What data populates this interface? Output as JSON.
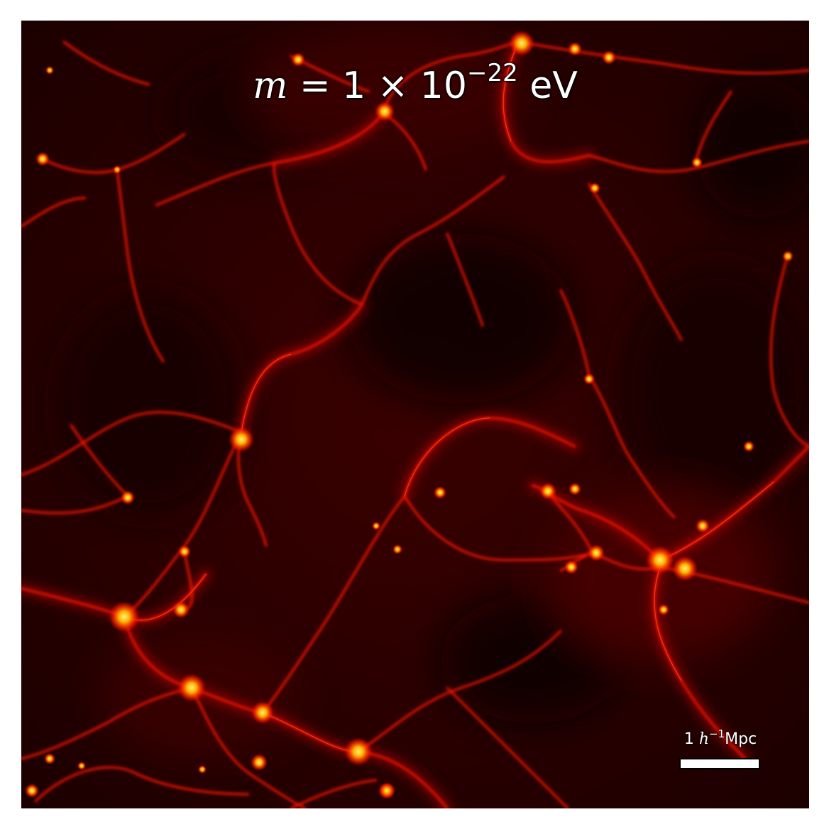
{
  "image": {
    "title": {
      "variable": "m",
      "equals": " = 1 × 10",
      "exponent": "−22",
      "unit": " eV"
    },
    "scale_bar": {
      "prefix": "1 ",
      "h": "h",
      "exponent": "−1",
      "unit": "Mpc"
    },
    "colors": {
      "void": "#140000",
      "filament": "#ff1a00",
      "halo_core": "#ffe040"
    }
  }
}
